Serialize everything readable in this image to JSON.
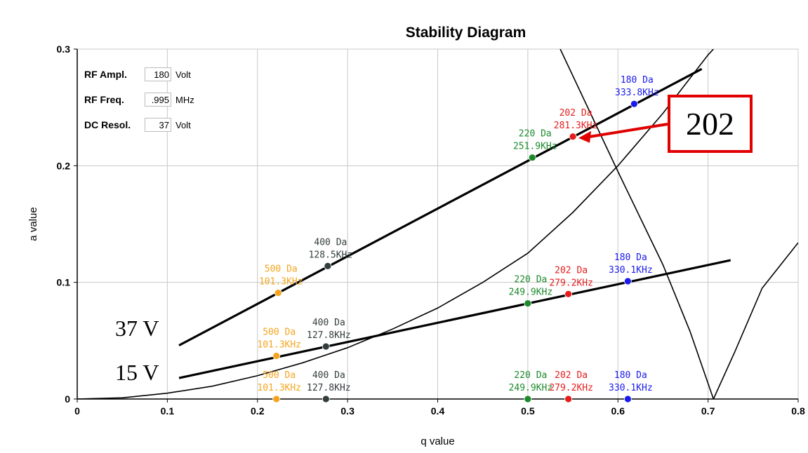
{
  "chart_data": {
    "type": "line",
    "title": "Stability Diagram",
    "xlabel": "q value",
    "ylabel": "a value",
    "xlim": [
      0,
      0.8
    ],
    "ylim": [
      0,
      0.3
    ],
    "xticks": [
      "0",
      "0.1",
      "0.2",
      "0.3",
      "0.4",
      "0.5",
      "0.6",
      "0.7",
      "0.8"
    ],
    "yticks": [
      "0",
      "0.1",
      "0.2",
      "0.3"
    ],
    "grid": true,
    "boundaries": [
      {
        "name": "",
        "x": [
          0,
          0.05,
          0.1,
          0.15,
          0.2,
          0.25,
          0.3,
          0.35,
          0.4,
          0.45,
          0.5,
          0.55,
          0.6,
          0.65,
          0.7,
          0.706
        ],
        "y": [
          0,
          0.001,
          0.005,
          0.011,
          0.02,
          0.031,
          0.044,
          0.06,
          0.078,
          0.1,
          0.125,
          0.16,
          0.2,
          0.245,
          0.295,
          0.3
        ]
      },
      {
        "name": "",
        "x": [
          0.536,
          0.6,
          0.65,
          0.68,
          0.706,
          0.73,
          0.76,
          0.8
        ],
        "y": [
          0.3,
          0.195,
          0.115,
          0.058,
          0.0,
          0.041,
          0.095,
          0.134
        ]
      }
    ],
    "scan_lines": [
      {
        "label": "37 V",
        "x": [
          0.113,
          0.693
        ],
        "y": [
          0.046,
          0.283
        ]
      },
      {
        "label": "15 V",
        "x": [
          0.113,
          0.725
        ],
        "y": [
          0.018,
          0.119
        ]
      }
    ],
    "points": [
      {
        "x": 0.223,
        "y": 0.091,
        "mass": "500 Da",
        "freq": "101.3KHz",
        "color": "#f4a51d"
      },
      {
        "x": 0.278,
        "y": 0.114,
        "mass": "400 Da",
        "freq": "128.5KHz",
        "color": "#333d3d"
      },
      {
        "x": 0.505,
        "y": 0.207,
        "mass": "220 Da",
        "freq": "251.9KHz",
        "color": "#1a8a2a"
      },
      {
        "x": 0.55,
        "y": 0.225,
        "mass": "202 Da",
        "freq": "281.3KHz",
        "color": "#e51c1c"
      },
      {
        "x": 0.618,
        "y": 0.253,
        "mass": "180 Da",
        "freq": "333.8KHz",
        "color": "#1a1aee"
      },
      {
        "x": 0.221,
        "y": 0.037,
        "mass": "500 Da",
        "freq": "101.3KHz",
        "color": "#f4a51d"
      },
      {
        "x": 0.276,
        "y": 0.045,
        "mass": "400 Da",
        "freq": "127.8KHz",
        "color": "#333d3d"
      },
      {
        "x": 0.5,
        "y": 0.082,
        "mass": "220 Da",
        "freq": "249.9KHz",
        "color": "#1a8a2a"
      },
      {
        "x": 0.545,
        "y": 0.09,
        "mass": "202 Da",
        "freq": "279.2KHz",
        "color": "#e51c1c"
      },
      {
        "x": 0.611,
        "y": 0.101,
        "mass": "180 Da",
        "freq": "330.1KHz",
        "color": "#1a1aee"
      },
      {
        "x": 0.221,
        "y": 0.0,
        "mass": "500 Da",
        "freq": "101.3KHz",
        "color": "#f4a51d"
      },
      {
        "x": 0.276,
        "y": 0.0,
        "mass": "400 Da",
        "freq": "127.8KHz",
        "color": "#333d3d"
      },
      {
        "x": 0.5,
        "y": 0.0,
        "mass": "220 Da",
        "freq": "249.9KHz",
        "color": "#1a8a2a"
      },
      {
        "x": 0.545,
        "y": 0.0,
        "mass": "202 Da",
        "freq": "279.2KHz",
        "color": "#e51c1c"
      },
      {
        "x": 0.611,
        "y": 0.0,
        "mass": "180 Da",
        "freq": "330.1KHz",
        "color": "#1a1aee"
      }
    ],
    "annotation": {
      "text": "202",
      "target_x": 0.55,
      "target_y": 0.225,
      "color": "#e00000"
    }
  },
  "controls": {
    "rf_ampl": {
      "label": "RF Ampl.",
      "value": "180",
      "unit": "Volt"
    },
    "rf_freq": {
      "label": "RF Freq.",
      "value": ".995",
      "unit": "MHz"
    },
    "dc_resol": {
      "label": "DC Resol.",
      "value": "37",
      "unit": "Volt"
    }
  },
  "voltage_labels": {
    "high": "37 V",
    "low": "15 V"
  }
}
